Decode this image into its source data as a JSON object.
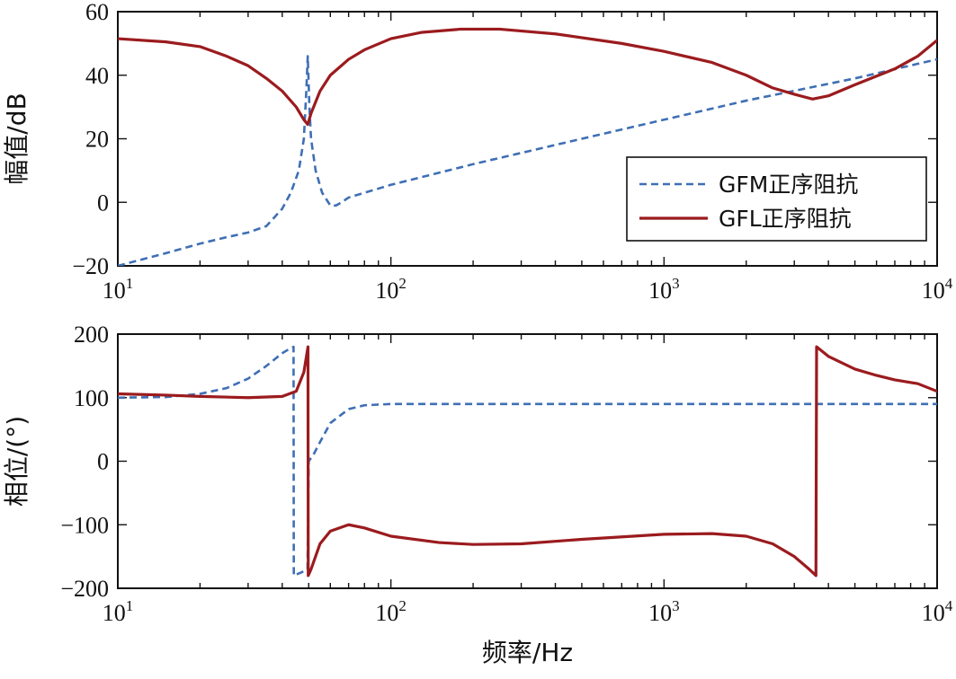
{
  "chart_data": [
    {
      "type": "line",
      "id": "magnitude",
      "xscale": "log",
      "xlim": [
        10,
        10000
      ],
      "ylim": [
        -20,
        60
      ],
      "yticks": [
        -20,
        0,
        20,
        40,
        60
      ],
      "ylabel": "幅值/dB",
      "xlabel": "",
      "xtick_labels": [
        {
          "value": 10,
          "base": "10",
          "exp": "1"
        },
        {
          "value": 100,
          "base": "10",
          "exp": "2"
        },
        {
          "value": 1000,
          "base": "10",
          "exp": "3"
        },
        {
          "value": 10000,
          "base": "10",
          "exp": "4"
        }
      ],
      "legend": {
        "position": "right",
        "entries": [
          "GFM正序阻抗",
          "GFL正序阻抗"
        ]
      },
      "series": [
        {
          "name": "GFM正序阻抗",
          "color": "#3f6fb5",
          "style": "dashed",
          "points": [
            [
              10,
              -20
            ],
            [
              15,
              -16
            ],
            [
              20,
              -13
            ],
            [
              25,
              -11
            ],
            [
              30,
              -9.5
            ],
            [
              35,
              -7.5
            ],
            [
              40,
              -2
            ],
            [
              43,
              3
            ],
            [
              46,
              10
            ],
            [
              48,
              20
            ],
            [
              49,
              35
            ],
            [
              49.6,
              46
            ],
            [
              50.3,
              30
            ],
            [
              51,
              20
            ],
            [
              53,
              10
            ],
            [
              56,
              3
            ],
            [
              60,
              -1
            ],
            [
              63,
              -1
            ],
            [
              66,
              0
            ],
            [
              70,
              1.5
            ],
            [
              80,
              3
            ],
            [
              100,
              5.5
            ],
            [
              200,
              12
            ],
            [
              500,
              20
            ],
            [
              1000,
              26
            ],
            [
              2000,
              32
            ],
            [
              5000,
              39
            ],
            [
              10000,
              45
            ]
          ]
        },
        {
          "name": "GFL正序阻抗",
          "color": "#9b1b1e",
          "style": "solid",
          "points": [
            [
              10,
              51.5
            ],
            [
              15,
              50.5
            ],
            [
              20,
              49
            ],
            [
              25,
              46
            ],
            [
              30,
              43
            ],
            [
              35,
              39
            ],
            [
              40,
              35
            ],
            [
              45,
              30
            ],
            [
              48,
              26
            ],
            [
              49.6,
              24.5
            ],
            [
              51,
              28
            ],
            [
              55,
              35
            ],
            [
              60,
              40
            ],
            [
              70,
              45
            ],
            [
              80,
              48
            ],
            [
              100,
              51.5
            ],
            [
              130,
              53.5
            ],
            [
              180,
              54.5
            ],
            [
              250,
              54.5
            ],
            [
              400,
              53
            ],
            [
              700,
              50
            ],
            [
              1000,
              47.5
            ],
            [
              1500,
              44
            ],
            [
              2000,
              40
            ],
            [
              2500,
              36
            ],
            [
              3000,
              34
            ],
            [
              3500,
              32.5
            ],
            [
              4000,
              33.5
            ],
            [
              5000,
              37
            ],
            [
              7000,
              42
            ],
            [
              8500,
              46
            ],
            [
              10000,
              51
            ]
          ]
        }
      ]
    },
    {
      "type": "line",
      "id": "phase",
      "xscale": "log",
      "xlim": [
        10,
        10000
      ],
      "ylim": [
        -200,
        200
      ],
      "yticks": [
        -200,
        -100,
        0,
        100,
        200
      ],
      "ylabel": "相位/(°)",
      "xlabel": "频率/Hz",
      "xtick_labels": [
        {
          "value": 10,
          "base": "10",
          "exp": "1"
        },
        {
          "value": 100,
          "base": "10",
          "exp": "2"
        },
        {
          "value": 1000,
          "base": "10",
          "exp": "3"
        },
        {
          "value": 10000,
          "base": "10",
          "exp": "4"
        }
      ],
      "series": [
        {
          "name": "GFM正序阻抗",
          "color": "#3f6fb5",
          "style": "dashed",
          "points": [
            [
              10,
              100
            ],
            [
              15,
              101
            ],
            [
              20,
              106
            ],
            [
              25,
              115
            ],
            [
              30,
              130
            ],
            [
              35,
              150
            ],
            [
              40,
              170
            ],
            [
              43,
              178
            ],
            [
              44,
              180
            ],
            [
              44.1,
              -180
            ],
            [
              47,
              -175
            ],
            [
              49.5,
              -170
            ],
            [
              50,
              0
            ],
            [
              52,
              10
            ],
            [
              55,
              30
            ],
            [
              60,
              60
            ],
            [
              70,
              82
            ],
            [
              80,
              88
            ],
            [
              100,
              90
            ],
            [
              1000,
              90
            ],
            [
              10000,
              90
            ]
          ]
        },
        {
          "name": "GFL正序阻抗",
          "color": "#9b1b1e",
          "style": "solid",
          "points": [
            [
              10,
              106
            ],
            [
              15,
              104
            ],
            [
              20,
              102
            ],
            [
              30,
              100
            ],
            [
              40,
              102
            ],
            [
              45,
              110
            ],
            [
              48,
              140
            ],
            [
              49.7,
              180
            ],
            [
              49.8,
              -180
            ],
            [
              51,
              -170
            ],
            [
              55,
              -130
            ],
            [
              60,
              -110
            ],
            [
              70,
              -100
            ],
            [
              80,
              -105
            ],
            [
              100,
              -118
            ],
            [
              150,
              -128
            ],
            [
              200,
              -131
            ],
            [
              300,
              -130
            ],
            [
              500,
              -123
            ],
            [
              1000,
              -115
            ],
            [
              1500,
              -114
            ],
            [
              2000,
              -118
            ],
            [
              2500,
              -130
            ],
            [
              3000,
              -150
            ],
            [
              3400,
              -170
            ],
            [
              3600,
              -180
            ],
            [
              3620,
              180
            ],
            [
              4000,
              165
            ],
            [
              5000,
              145
            ],
            [
              6000,
              135
            ],
            [
              7000,
              128
            ],
            [
              8500,
              122
            ],
            [
              10000,
              110
            ]
          ]
        }
      ]
    }
  ]
}
